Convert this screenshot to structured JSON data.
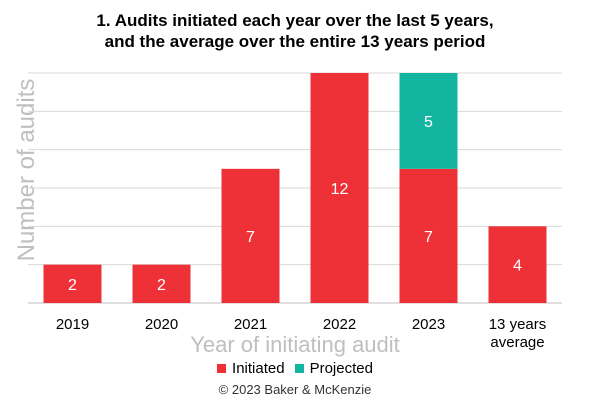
{
  "chart_data": {
    "type": "bar",
    "stacked": true,
    "title": [
      "1. Audits initiated each year over the last 5 years,",
      "and the average over the entire 13 years period"
    ],
    "xlabel": "Year of initiating audit",
    "ylabel": "Number of audits",
    "categories": [
      [
        "2019"
      ],
      [
        "2020"
      ],
      [
        "2021"
      ],
      [
        "2022"
      ],
      [
        "2023"
      ],
      [
        "13 years",
        "average"
      ]
    ],
    "series": [
      {
        "name": "Initiated",
        "color": "#ee3137",
        "values": [
          2,
          2,
          7,
          12,
          7,
          4
        ]
      },
      {
        "name": "Projected",
        "color": "#13b5a0",
        "values": [
          0,
          0,
          0,
          0,
          5,
          0
        ]
      }
    ],
    "ylim": [
      0,
      12
    ],
    "grid": true,
    "legend_position": "bottom",
    "source": "© 2023 Baker & McKenzie"
  }
}
